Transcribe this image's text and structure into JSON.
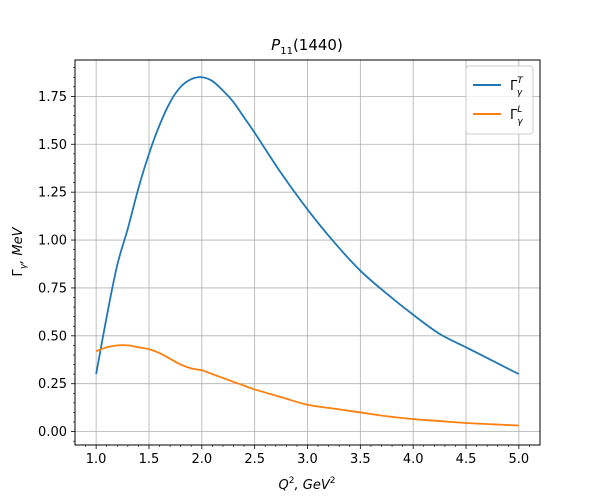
{
  "chart_data": {
    "type": "line",
    "title": {
      "main": "P",
      "sub": "11",
      "suffix": "(1440)"
    },
    "xlabel": {
      "base": "Q",
      "sup": "2",
      "mid": ", GeV",
      "sup2": "2"
    },
    "ylabel": {
      "greek": "Γ",
      "sub": "γ",
      "rest": ", MeV"
    },
    "xlim": [
      0.8,
      5.2
    ],
    "ylim": [
      -0.07,
      1.94
    ],
    "xticks": [
      1.0,
      1.5,
      2.0,
      2.5,
      3.0,
      3.5,
      4.0,
      4.5,
      5.0
    ],
    "xtick_labels": [
      "1.0",
      "1.5",
      "2.0",
      "2.5",
      "3.0",
      "3.5",
      "4.0",
      "4.5",
      "5.0"
    ],
    "yticks": [
      0.0,
      0.25,
      0.5,
      0.75,
      1.0,
      1.25,
      1.5,
      1.75
    ],
    "ytick_labels": [
      "0.00",
      "0.25",
      "0.50",
      "0.75",
      "1.00",
      "1.25",
      "1.50",
      "1.75"
    ],
    "grid": true,
    "legend_position": "top-right",
    "x": [
      1.0,
      1.1,
      1.2,
      1.3,
      1.4,
      1.5,
      1.6,
      1.7,
      1.8,
      1.9,
      2.0,
      2.1,
      2.2,
      2.3,
      2.4,
      2.5,
      2.75,
      3.0,
      3.25,
      3.5,
      3.75,
      4.0,
      4.25,
      4.5,
      4.75,
      5.0
    ],
    "series": [
      {
        "name": "Γ_γ^T",
        "legend": {
          "greek": "Γ",
          "sub": "γ",
          "sup": "T"
        },
        "color": "#1f77b4",
        "values": [
          0.3,
          0.6,
          0.87,
          1.06,
          1.27,
          1.45,
          1.6,
          1.72,
          1.8,
          1.84,
          1.85,
          1.83,
          1.78,
          1.72,
          1.64,
          1.56,
          1.35,
          1.16,
          0.99,
          0.84,
          0.72,
          0.61,
          0.51,
          0.44,
          0.37,
          0.3
        ]
      },
      {
        "name": "Γ_γ^L",
        "legend": {
          "greek": "Γ",
          "sub": "γ",
          "sup": "L"
        },
        "color": "#ff7f0e",
        "values": [
          0.42,
          0.44,
          0.45,
          0.45,
          0.44,
          0.43,
          0.41,
          0.38,
          0.35,
          0.33,
          0.32,
          0.3,
          0.28,
          0.26,
          0.24,
          0.22,
          0.18,
          0.14,
          0.12,
          0.1,
          0.08,
          0.065,
          0.055,
          0.045,
          0.038,
          0.032
        ]
      }
    ]
  }
}
